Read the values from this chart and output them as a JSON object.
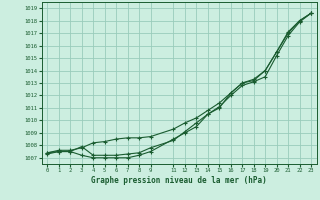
{
  "title": "Graphe pression niveau de la mer (hPa)",
  "bg_color": "#cceee0",
  "grid_color": "#99ccbb",
  "line_color": "#1a5c30",
  "xlim": [
    -0.5,
    23.5
  ],
  "ylim": [
    1006.5,
    1019.5
  ],
  "yticks": [
    1007,
    1008,
    1009,
    1010,
    1011,
    1012,
    1013,
    1014,
    1015,
    1016,
    1017,
    1018,
    1019
  ],
  "xticks": [
    0,
    1,
    2,
    3,
    4,
    5,
    6,
    7,
    8,
    9,
    11,
    12,
    13,
    14,
    15,
    16,
    17,
    18,
    19,
    20,
    21,
    22,
    23
  ],
  "series1_x": [
    0,
    1,
    2,
    3,
    4,
    5,
    6,
    7,
    8,
    9,
    11,
    12,
    13,
    14,
    15,
    16,
    17,
    18,
    19,
    20,
    21,
    22,
    23
  ],
  "series1_y": [
    1007.3,
    1007.5,
    1007.5,
    1007.2,
    1007.0,
    1007.0,
    1007.0,
    1007.0,
    1007.2,
    1007.5,
    1008.5,
    1009.0,
    1009.5,
    1010.5,
    1011.0,
    1012.2,
    1013.0,
    1013.2,
    1014.0,
    1015.5,
    1017.0,
    1018.0,
    1018.6
  ],
  "series2_x": [
    0,
    1,
    2,
    3,
    4,
    5,
    6,
    7,
    8,
    9,
    11,
    12,
    13,
    14,
    15,
    16,
    17,
    18,
    19,
    20,
    21,
    22,
    23
  ],
  "series2_y": [
    1007.4,
    1007.6,
    1007.6,
    1007.8,
    1008.2,
    1008.3,
    1008.5,
    1008.6,
    1008.6,
    1008.7,
    1009.3,
    1009.8,
    1010.2,
    1010.8,
    1011.4,
    1012.2,
    1013.0,
    1013.3,
    1014.0,
    1015.5,
    1017.1,
    1018.0,
    1018.6
  ],
  "series3_x": [
    0,
    1,
    2,
    3,
    4,
    5,
    6,
    7,
    8,
    9,
    11,
    12,
    13,
    14,
    15,
    16,
    17,
    18,
    19,
    20,
    21,
    22,
    23
  ],
  "series3_y": [
    1007.4,
    1007.5,
    1007.5,
    1007.9,
    1007.2,
    1007.2,
    1007.2,
    1007.3,
    1007.4,
    1007.8,
    1008.4,
    1009.1,
    1009.8,
    1010.5,
    1011.1,
    1012.0,
    1012.8,
    1013.1,
    1013.5,
    1015.2,
    1016.8,
    1017.9,
    1018.6
  ]
}
